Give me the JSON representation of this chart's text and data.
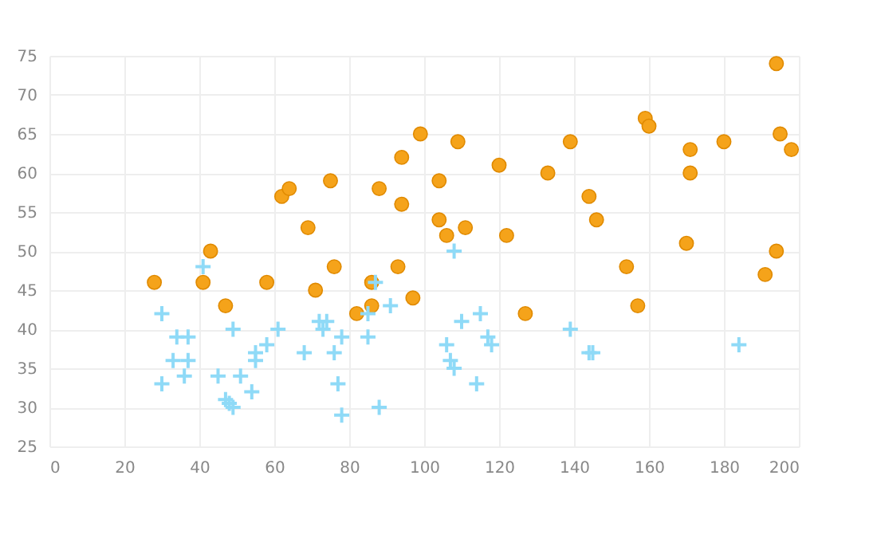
{
  "chart_data": {
    "type": "scatter",
    "xlim": [
      0,
      200
    ],
    "xticks": [
      0,
      20,
      40,
      60,
      80,
      100,
      120,
      140,
      160,
      180,
      200
    ],
    "ylim": [
      25,
      75
    ],
    "yticks": [
      25,
      30,
      35,
      40,
      45,
      50,
      55,
      60,
      65,
      70,
      75
    ],
    "grid": true,
    "series": [
      {
        "color": "#f5a31a",
        "marker": "circle",
        "x": [
          28,
          41,
          43,
          47,
          58,
          62,
          64,
          69,
          71,
          75,
          76,
          82,
          86,
          86,
          88,
          93,
          94,
          94,
          97,
          99,
          104,
          104,
          106,
          109,
          111,
          120,
          122,
          127,
          133,
          139,
          144,
          146,
          154,
          157,
          159,
          160,
          170,
          171,
          171,
          180,
          191,
          194,
          194,
          195,
          198
        ],
        "values": [
          46,
          46,
          50,
          43,
          46,
          57,
          58,
          53,
          45,
          59,
          48,
          42,
          46,
          43,
          58,
          48,
          62,
          56,
          44,
          65,
          59,
          54,
          52,
          64,
          53,
          61,
          52,
          42,
          60,
          64,
          57,
          54,
          48,
          43,
          67,
          66,
          51,
          63,
          60,
          64,
          47,
          50,
          74,
          65,
          63
        ]
      },
      {
        "color": "#8fdaf7",
        "marker": "cross",
        "x": [
          30,
          30,
          33,
          34,
          37,
          37,
          36,
          41,
          45,
          47,
          48,
          49,
          49,
          51,
          54,
          55,
          55,
          58,
          61,
          68,
          72,
          73,
          74,
          76,
          78,
          77,
          78,
          85,
          85,
          87,
          88,
          91,
          107,
          108,
          106,
          108,
          110,
          114,
          115,
          117,
          118,
          139,
          144,
          145,
          184
        ],
        "values": [
          42,
          33,
          36,
          39,
          39,
          36,
          34,
          48,
          34,
          31,
          30.5,
          40,
          30,
          34,
          32,
          36,
          37,
          38,
          40,
          37,
          41,
          40,
          41,
          37,
          39,
          33,
          29,
          42,
          39,
          46,
          30,
          43,
          36,
          35,
          38,
          50,
          41,
          33,
          42,
          39,
          38,
          40,
          37,
          37,
          38
        ]
      }
    ]
  }
}
